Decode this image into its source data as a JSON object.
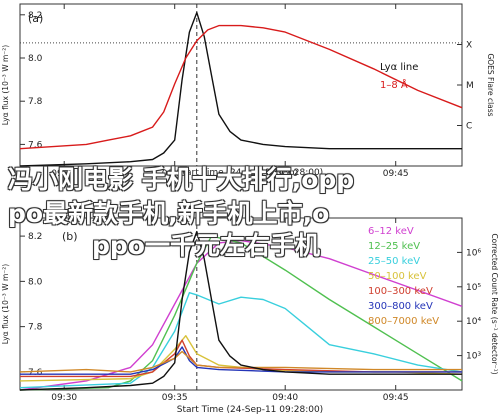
{
  "colors": {
    "lya_red": "#d81b1b",
    "goes_black": "#111111",
    "band_colors": [
      "#d040d0",
      "#50c050",
      "#39cfdd",
      "#d8c23a",
      "#d04030",
      "#2535b8",
      "#d08828"
    ]
  },
  "chart_data": [
    {
      "type": "line",
      "panel_label": "(a)",
      "ylabel": "Lyα flux (10⁻³ W m⁻²)",
      "y2label": "GOES Flare class",
      "xlabel": "Start Time (24-Sep-11 09:28:00)",
      "xlim": [
        "09:28",
        "09:48"
      ],
      "ylim": [
        7.5,
        8.25
      ],
      "x_ticks": [
        "09:30",
        "09:35",
        "09:40",
        "09:45"
      ],
      "y_ticks": [
        "7.6",
        "7.8",
        "8.0",
        "8.2"
      ],
      "y2_ticks": [
        "C",
        "M",
        "X"
      ],
      "legend": [
        "Lyα line",
        "1–8 Å"
      ],
      "legend_position": "top-right",
      "dotted_reference": {
        "y": 8.07
      },
      "dashed_vertical": {
        "x": "09:36"
      },
      "series": [
        {
          "name": "Lyα line",
          "color": "#111111",
          "x": [
            "09:28",
            "09:31",
            "09:33",
            "09:34",
            "09:34:30",
            "09:35",
            "09:35:20",
            "09:35:40",
            "09:36",
            "09:36:20",
            "09:36:40",
            "09:37",
            "09:37:30",
            "09:38",
            "09:39",
            "09:40",
            "09:42",
            "09:45",
            "09:48"
          ],
          "y": [
            7.5,
            7.51,
            7.52,
            7.53,
            7.56,
            7.62,
            7.9,
            8.12,
            8.21,
            8.1,
            7.92,
            7.74,
            7.66,
            7.62,
            7.6,
            7.59,
            7.58,
            7.58,
            7.58
          ]
        },
        {
          "name": "1–8 Å",
          "color": "#d81b1b",
          "x": [
            "09:28",
            "09:31",
            "09:32",
            "09:33",
            "09:34",
            "09:34:30",
            "09:35",
            "09:35:30",
            "09:36",
            "09:36:30",
            "09:37",
            "09:38",
            "09:39",
            "09:40",
            "09:42",
            "09:44",
            "09:46",
            "09:48"
          ],
          "y": [
            7.58,
            7.6,
            7.62,
            7.64,
            7.68,
            7.75,
            7.88,
            8.0,
            8.08,
            8.13,
            8.15,
            8.15,
            8.14,
            8.12,
            8.04,
            7.95,
            7.85,
            7.77
          ]
        }
      ]
    },
    {
      "type": "line",
      "panel_label": "(b)",
      "ylabel": "Lyα flux (10⁻³ W m⁻²)",
      "y2label": "Corrected Count Rate (s⁻¹ detector⁻¹)",
      "xlabel": "Start Time (24-Sep-11 09:28:00)",
      "xlim": [
        "09:28",
        "09:48"
      ],
      "ylim": [
        7.52,
        8.28
      ],
      "x_ticks": [
        "09:30",
        "09:35",
        "09:40",
        "09:45"
      ],
      "y_ticks": [
        "7.6",
        "7.8",
        "8.0",
        "8.2"
      ],
      "y2_ticks": [
        "10³",
        "10⁴",
        "10⁵",
        "10⁶"
      ],
      "legend": [
        "6–12 keV",
        "12–25 keV",
        "25–50 keV",
        "50–100 keV",
        "100–300 keV",
        "300–800 keV",
        "800–7000 keV"
      ],
      "legend_position": "right",
      "dashed_vertical": {
        "x": "09:36"
      },
      "series": [
        {
          "name": "6–12 keV",
          "color": "#d040d0",
          "x": [
            "09:28",
            "09:31",
            "09:33",
            "09:34",
            "09:35",
            "09:36",
            "09:37",
            "09:38",
            "09:40",
            "09:42",
            "09:44",
            "09:46",
            "09:48"
          ],
          "y": [
            7.52,
            7.56,
            7.62,
            7.72,
            7.9,
            8.08,
            8.17,
            8.18,
            8.15,
            8.1,
            8.03,
            7.96,
            7.89
          ]
        },
        {
          "name": "12–25 keV",
          "color": "#50c050",
          "x": [
            "09:28",
            "09:32",
            "09:33",
            "09:34",
            "09:35",
            "09:36",
            "09:36:40",
            "09:38",
            "09:40",
            "09:42",
            "09:44",
            "09:46",
            "09:48"
          ],
          "y": [
            7.52,
            7.53,
            7.56,
            7.65,
            7.85,
            8.08,
            8.2,
            8.17,
            8.05,
            7.92,
            7.8,
            7.68,
            7.56
          ]
        },
        {
          "name": "25–50 keV",
          "color": "#39cfdd",
          "x": [
            "09:28",
            "09:33",
            "09:34",
            "09:35",
            "09:35:40",
            "09:36",
            "09:37",
            "09:38",
            "09:39",
            "09:40",
            "09:41",
            "09:42",
            "09:44",
            "09:46",
            "09:48"
          ],
          "y": [
            7.53,
            7.55,
            7.62,
            7.78,
            7.95,
            7.94,
            7.9,
            7.93,
            7.92,
            7.88,
            7.8,
            7.72,
            7.68,
            7.63,
            7.6
          ]
        },
        {
          "name": "50–100 keV",
          "color": "#d8c23a",
          "x": [
            "09:28",
            "09:33",
            "09:34",
            "09:35",
            "09:35:30",
            "09:36",
            "09:37",
            "09:39",
            "09:42",
            "09:45",
            "09:48"
          ],
          "y": [
            7.56,
            7.57,
            7.6,
            7.7,
            7.76,
            7.68,
            7.63,
            7.61,
            7.6,
            7.6,
            7.59
          ]
        },
        {
          "name": "100–300 keV",
          "color": "#d04030",
          "x": [
            "09:28",
            "09:33",
            "09:34",
            "09:35",
            "09:35:20",
            "09:35:40",
            "09:36",
            "09:37",
            "09:40",
            "09:44",
            "09:48"
          ],
          "y": [
            7.58,
            7.58,
            7.6,
            7.68,
            7.74,
            7.67,
            7.63,
            7.62,
            7.61,
            7.6,
            7.6
          ]
        },
        {
          "name": "300–800 keV",
          "color": "#2535b8",
          "x": [
            "09:28",
            "09:33",
            "09:34",
            "09:35",
            "09:35:20",
            "09:35:40",
            "09:36",
            "09:37",
            "09:40",
            "09:44",
            "09:48"
          ],
          "y": [
            7.59,
            7.59,
            7.61,
            7.66,
            7.71,
            7.65,
            7.62,
            7.61,
            7.6,
            7.6,
            7.6
          ]
        },
        {
          "name": "800–7000 keV",
          "color": "#d08828",
          "x": [
            "09:28",
            "09:31",
            "09:33",
            "09:34",
            "09:35",
            "09:35:20",
            "09:36",
            "09:37",
            "09:40",
            "09:44",
            "09:48"
          ],
          "y": [
            7.6,
            7.61,
            7.6,
            7.62,
            7.66,
            7.69,
            7.63,
            7.62,
            7.62,
            7.61,
            7.61
          ]
        },
        {
          "name": "Lyα",
          "color": "#111111",
          "x": [
            "09:28",
            "09:31",
            "09:33",
            "09:34",
            "09:34:30",
            "09:35",
            "09:35:20",
            "09:35:40",
            "09:36",
            "09:36:20",
            "09:36:40",
            "09:37",
            "09:37:30",
            "09:38",
            "09:39",
            "09:40",
            "09:42",
            "09:45",
            "09:48"
          ],
          "y": [
            7.52,
            7.53,
            7.54,
            7.55,
            7.58,
            7.64,
            7.92,
            8.13,
            8.22,
            8.1,
            7.92,
            7.74,
            7.67,
            7.63,
            7.61,
            7.6,
            7.59,
            7.59,
            7.59
          ]
        }
      ]
    }
  ],
  "overlay": {
    "line1": "冯小刚电影 手机十大排行,opp",
    "line2": "po最新款手机,新手机上市,o",
    "line3": "ppo一千元左右手机"
  }
}
